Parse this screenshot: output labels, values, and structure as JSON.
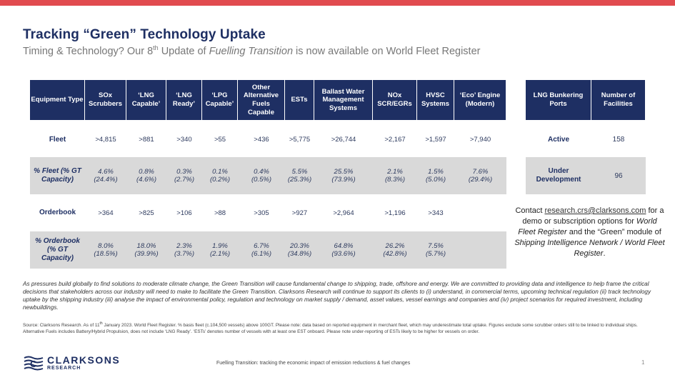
{
  "title": "Tracking “Green” Technology Uptake",
  "subtitle": {
    "pre": "Timing & Technology? Our 8",
    "sup": "th",
    "mid": " Update of ",
    "italic": "Fuelling Transition",
    "post": " is now available on World Fleet Register"
  },
  "main_table": {
    "headers": [
      "Equipment Type",
      "SOx Scrubbers",
      "‘LNG Capable’",
      "‘LNG Ready’",
      "‘LPG Capable’",
      "Other Alternative Fuels Capable",
      "ESTs",
      "Ballast Water Management Systems",
      "NOx SCR/EGRs",
      "HVSC Systems",
      "‘Eco’ Engine (Modern)"
    ],
    "fleet": {
      "label": "Fleet",
      "values": [
        ">4,815",
        ">881",
        ">340",
        ">55",
        ">436",
        ">5,775",
        ">26,744",
        ">2,167",
        ">1,597",
        ">7,940"
      ]
    },
    "pct_fleet": {
      "label": "% Fleet (% GT Capacity)",
      "values": [
        "4.6%",
        "0.8%",
        "0.3%",
        "0.1%",
        "0.4%",
        "5.5%",
        "25.5%",
        "2.1%",
        "1.5%",
        "7.6%"
      ],
      "sub": [
        "(24.4%)",
        "(4.6%)",
        "(2.7%)",
        "(0.2%)",
        "(0.5%)",
        "(25.3%)",
        "(73.9%)",
        "(8.3%)",
        "(5.0%)",
        "(29.4%)"
      ]
    },
    "orderbook": {
      "label": "Orderbook",
      "values": [
        ">364",
        ">825",
        ">106",
        ">88",
        ">305",
        ">927",
        ">2,964",
        ">1,196",
        ">343",
        ""
      ]
    },
    "pct_orderbook": {
      "label": "% Orderbook (% GT Capacity)",
      "values": [
        "8.0%",
        "18.0%",
        "2.3%",
        "1.9%",
        "6.7%",
        "20.3%",
        "64.8%",
        "26.2%",
        "7.5%",
        ""
      ],
      "sub": [
        "(18.5%)",
        "(39.9%)",
        "(3.7%)",
        "(2.1%)",
        "(6.1%)",
        "(34.8%)",
        "(93.6%)",
        "(42.8%)",
        "(5.7%)",
        ""
      ]
    }
  },
  "side_table": {
    "headers": [
      "LNG Bunkering Ports",
      "Number of Facilities"
    ],
    "rows": [
      {
        "label": "Active",
        "value": "158"
      },
      {
        "label": "Under Development",
        "value": "96"
      }
    ]
  },
  "contact": {
    "pre": "Contact ",
    "email": "research.crs@clarksons.com",
    "line2": " for a demo or subscription options for ",
    "italic1": "World Fleet Register",
    "line3": " and the “Green” module of ",
    "italic2": "Shipping Intelligence Network / World Fleet Register",
    "end": "."
  },
  "paragraph": "As pressures build globally to find solutions to moderate climate change, the Green Transition will cause fundamental change to shipping, trade, offshore and energy. We are committed to providing data and intelligence to help frame the critical decisions that stakeholders across our industry will need to make to facilitate the Green Transition. Clarksons Research will continue to support its clients to (i) understand, in commercial terms, upcoming technical regulation (ii) track technology uptake by the shipping industry (iii) analyse the impact of environmental policy, regulation and technology on market supply / demand, asset values, vessel earnings and companies and (iv) project scenarios for required investment, including newbuildings.",
  "source": {
    "pre": "Source: Clarksons Research. As of 11",
    "sup": "th",
    "post": " January 2023. World Fleet Register. % basis fleet (c.104,500 vessels) above 100GT. Please note: data based on reported equipment in merchant fleet, which may underestimate total uptake. Figures exclude some scrubber orders still to be linked to individual ships. Alternative Fuels includes Battery/Hybrid Propulsion, does not include ‘LNG Ready’. ‘ESTs’ denotes number of vessels with at least one EST onboard. Please note under-reporting of ESTs likely to be higher for vessels on order."
  },
  "logo": {
    "name": "CLARKSONS",
    "sub": "RESEARCH"
  },
  "footer": "Fuelling Transition: tracking the economic impact of emission reductions & fuel changes",
  "page_number": "1",
  "colors": {
    "navy": "#1e2f63",
    "accent": "#e14b4f",
    "grey": "#d9d9d9"
  }
}
